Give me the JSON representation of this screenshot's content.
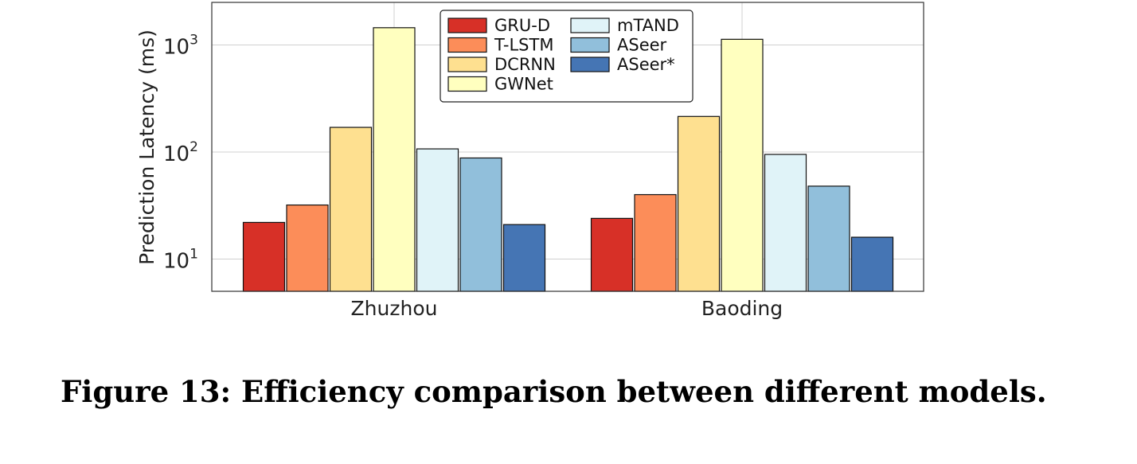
{
  "caption": "Figure 13: Efficiency comparison between different models.",
  "chart_data": {
    "type": "bar",
    "ylabel": "Prediction Latency (ms)",
    "xlabel": "",
    "yscale": "log",
    "ylim": [
      5,
      2500
    ],
    "grid": true,
    "legend_position": "top-center",
    "categories": [
      "Zhuzhou",
      "Baoding"
    ],
    "yticks": [
      {
        "base": "10",
        "exp": "1",
        "value": 10
      },
      {
        "base": "10",
        "exp": "2",
        "value": 100
      },
      {
        "base": "10",
        "exp": "3",
        "value": 1000
      }
    ],
    "series": [
      {
        "name": "GRU-D",
        "color": "#d73027",
        "values": [
          22,
          24
        ]
      },
      {
        "name": "T-LSTM",
        "color": "#fc8d59",
        "values": [
          32,
          40
        ]
      },
      {
        "name": "DCRNN",
        "color": "#fee090",
        "values": [
          170,
          215
        ]
      },
      {
        "name": "GWNet",
        "color": "#ffffbf",
        "values": [
          1450,
          1130
        ]
      },
      {
        "name": "mTAND",
        "color": "#e0f3f8",
        "values": [
          107,
          95
        ]
      },
      {
        "name": "ASeer",
        "color": "#91bfdb",
        "values": [
          88,
          48
        ]
      },
      {
        "name": "ASeer*",
        "color": "#4575b4",
        "values": [
          21,
          16
        ]
      }
    ]
  }
}
